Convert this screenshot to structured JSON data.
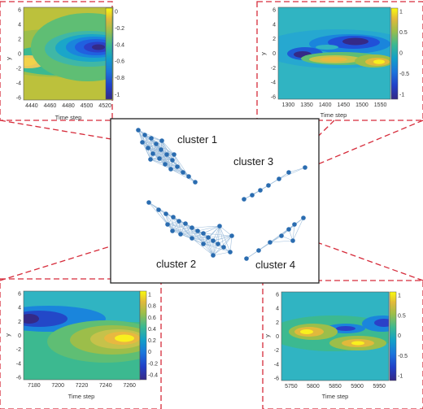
{
  "clusters": {
    "c1": "cluster 1",
    "c2": "cluster 2",
    "c3": "cluster 3",
    "c4": "cluster 4"
  },
  "axis": {
    "xlabel": "Time step",
    "ylabel": "y"
  },
  "panels": {
    "tl": {
      "xticks": [
        "4440",
        "4460",
        "4480",
        "4500",
        "4520"
      ],
      "yticks": [
        "6",
        "4",
        "2",
        "0",
        "-2",
        "-4",
        "-6"
      ],
      "cticks": [
        "0",
        "-0.2",
        "-0.4",
        "-0.6",
        "-0.8",
        "-1"
      ]
    },
    "tr": {
      "xticks": [
        "1300",
        "1350",
        "1400",
        "1450",
        "1500",
        "1550"
      ],
      "yticks": [
        "6",
        "4",
        "2",
        "0",
        "-2",
        "-4",
        "-6"
      ],
      "cticks": [
        "1",
        "0.5",
        "0",
        "-0.5",
        "-1"
      ]
    },
    "bl": {
      "xticks": [
        "7180",
        "7200",
        "7220",
        "7240",
        "7260"
      ],
      "yticks": [
        "6",
        "4",
        "2",
        "0",
        "-2",
        "-4",
        "-6"
      ],
      "cticks": [
        "1",
        "0.8",
        "0.6",
        "0.4",
        "0.2",
        "0",
        "-0.2",
        "-0.4"
      ]
    },
    "br": {
      "xticks": [
        "5750",
        "5800",
        "5850",
        "5900",
        "5950"
      ],
      "yticks": [
        "6",
        "4",
        "2",
        "0",
        "-2",
        "-4",
        "-6"
      ],
      "cticks": [
        "1",
        "0.5",
        "0",
        "-0.5",
        "-1"
      ]
    }
  },
  "colors": {
    "dash": "#d62b3a",
    "node": "#2a6cb0",
    "edge": "#8fb4d6",
    "frame": "#222222"
  }
}
